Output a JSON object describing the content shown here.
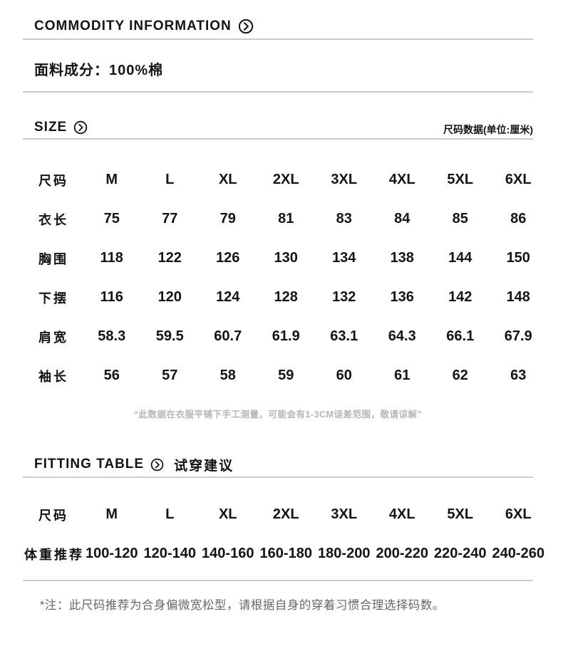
{
  "commodity": {
    "title": "COMMODITY INFORMATION",
    "fabric_label": "面料成分：",
    "fabric_value": "100%棉"
  },
  "size": {
    "title": "SIZE",
    "unit_label": "尺码数据(单位:厘米)",
    "table": {
      "rows": [
        {
          "label": "尺码",
          "values": [
            "M",
            "L",
            "XL",
            "2XL",
            "3XL",
            "4XL",
            "5XL",
            "6XL"
          ]
        },
        {
          "label": "衣长",
          "values": [
            "75",
            "77",
            "79",
            "81",
            "83",
            "84",
            "85",
            "86"
          ]
        },
        {
          "label": "胸围",
          "values": [
            "118",
            "122",
            "126",
            "130",
            "134",
            "138",
            "144",
            "150"
          ]
        },
        {
          "label": "下摆",
          "values": [
            "116",
            "120",
            "124",
            "128",
            "132",
            "136",
            "142",
            "148"
          ]
        },
        {
          "label": "肩宽",
          "values": [
            "58.3",
            "59.5",
            "60.7",
            "61.9",
            "63.1",
            "64.3",
            "66.1",
            "67.9"
          ]
        },
        {
          "label": "袖长",
          "values": [
            "56",
            "57",
            "58",
            "59",
            "60",
            "61",
            "62",
            "63"
          ]
        }
      ]
    },
    "note": "“此数据在衣服平铺下手工测量，可能会有1-3CM误差范围，敬请谅解”"
  },
  "fitting": {
    "title": "FITTING TABLE",
    "subtitle": "试穿建议",
    "table": {
      "rows": [
        {
          "label": "尺码",
          "values": [
            "M",
            "L",
            "XL",
            "2XL",
            "3XL",
            "4XL",
            "5XL",
            "6XL"
          ]
        },
        {
          "label": "体重推荐",
          "values": [
            "100-120",
            "120-140",
            "140-160",
            "160-180",
            "180-200",
            "200-220",
            "220-240",
            "240-260"
          ]
        }
      ]
    },
    "note": "*注：此尺码推荐为合身偏微宽松型，请根据自身的穿着习惯合理选择码数。"
  },
  "icons": {
    "section_chevron": "chevron-right-circle"
  },
  "colors": {
    "text": "#141414",
    "divider": "#cccccc",
    "note_light": "#b5b5b5",
    "note_dark": "#666666"
  }
}
